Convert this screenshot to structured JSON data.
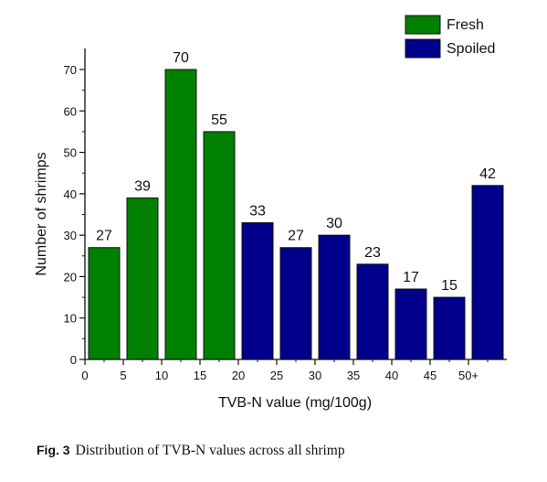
{
  "chart_data": {
    "type": "bar",
    "xlabel": "TVB-N value (mg/100g)",
    "ylabel": "Number of shrimps",
    "ylim": [
      0,
      70
    ],
    "yticks": [
      "0",
      "10",
      "20",
      "30",
      "40",
      "50",
      "60",
      "70"
    ],
    "xticks": [
      "0",
      "5",
      "10",
      "15",
      "20",
      "25",
      "30",
      "35",
      "40",
      "45",
      "50+"
    ],
    "legend_position": "top-right",
    "grid": false,
    "series": [
      {
        "name": "Fresh",
        "color": "#008000",
        "x": [
          5,
          10,
          15,
          20
        ],
        "values": [
          27,
          39,
          70,
          55
        ]
      },
      {
        "name": "Spoiled",
        "color": "#00008b",
        "x": [
          25,
          30,
          35,
          40,
          45,
          50,
          55
        ],
        "values": [
          33,
          27,
          30,
          23,
          17,
          15,
          42
        ]
      }
    ]
  },
  "caption": {
    "fig_label": "Fig. 3",
    "text": "Distribution of TVB-N values across all shrimp"
  }
}
